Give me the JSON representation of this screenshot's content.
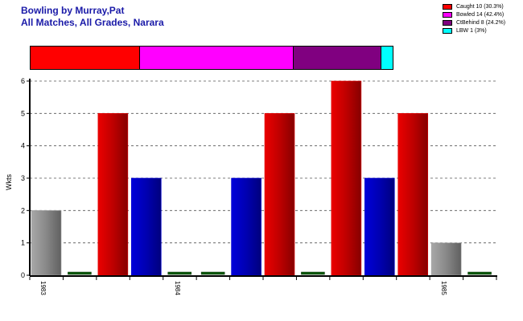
{
  "header": {
    "title": "Bowling by Murray,Pat",
    "subtitle": "All Matches, All Grades, Narara"
  },
  "legend": [
    {
      "label": "Caught 10 (30.3%)",
      "color": "#ff0000"
    },
    {
      "label": "Bowled 14 (42.4%)",
      "color": "#ff00ff"
    },
    {
      "label": "CtBehind 8 (24.2%)",
      "color": "#800080"
    },
    {
      "label": "LBW 1 (3%)",
      "color": "#00ffff"
    }
  ],
  "chart_data": {
    "type": "bar",
    "ylabel": "Wkts",
    "ylim": [
      0,
      6
    ],
    "yticks": [
      0,
      1,
      2,
      3,
      4,
      5,
      6
    ],
    "grid": true,
    "x_tick_labels": [
      "1983",
      "1984",
      "1985"
    ],
    "dismissal_share": [
      {
        "name": "Caught",
        "value": 10,
        "color": "#ff0000"
      },
      {
        "name": "Bowled",
        "value": 14,
        "color": "#ff00ff"
      },
      {
        "name": "CtBehind",
        "value": 8,
        "color": "#800080"
      },
      {
        "name": "LBW",
        "value": 1,
        "color": "#00ffff"
      }
    ],
    "bars": [
      {
        "value": 2,
        "color": "#a0a0a0"
      },
      {
        "value": 0,
        "color": "#0c5a0c"
      },
      {
        "value": 5,
        "color": "#e00000"
      },
      {
        "value": 3,
        "color": "#0000d0"
      },
      {
        "value": 0,
        "color": "#0c5a0c"
      },
      {
        "value": 0,
        "color": "#0c5a0c"
      },
      {
        "value": 3,
        "color": "#0000d0"
      },
      {
        "value": 5,
        "color": "#e00000"
      },
      {
        "value": 0,
        "color": "#0c5a0c"
      },
      {
        "value": 6,
        "color": "#e00000"
      },
      {
        "value": 3,
        "color": "#0000d0"
      },
      {
        "value": 5,
        "color": "#e00000"
      },
      {
        "value": 1,
        "color": "#a0a0a0"
      },
      {
        "value": 0,
        "color": "#0c5a0c"
      }
    ]
  }
}
